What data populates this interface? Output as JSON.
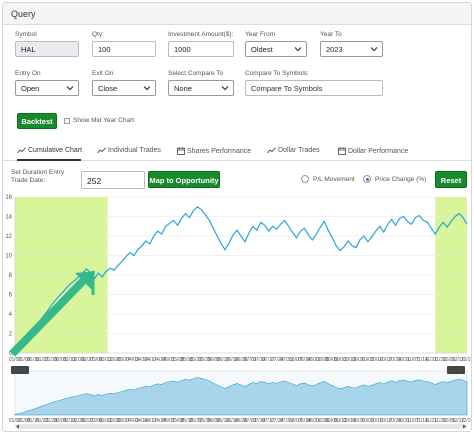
{
  "panel": {
    "title": "Query"
  },
  "form": {
    "symbol": {
      "label": "Symbol",
      "value": "HAL"
    },
    "qty": {
      "label": "Qty:",
      "value": "100"
    },
    "investment": {
      "label": "Investment Amount($):",
      "value": "1000"
    },
    "year_from": {
      "label": "Year From",
      "value": "Oldest"
    },
    "year_to": {
      "label": "Year To",
      "value": "2023"
    },
    "entry_on": {
      "label": "Entry On",
      "value": "Open"
    },
    "exit_on": {
      "label": "Exit On",
      "value": "Close"
    },
    "compare_to": {
      "label": "Select Compare To",
      "value": "None"
    },
    "compare_symbols": {
      "label": "Compare To Symbols:",
      "placeholder": "Compare To Symbols"
    },
    "backtest_label": "Backtest",
    "show_mid_year_label": "Show Mid Year Chart"
  },
  "tabs": [
    {
      "label": "Cumulative Chart",
      "icon": "line-chart-icon",
      "active": true
    },
    {
      "label": "Individual Trades",
      "icon": "line-chart-icon",
      "active": false
    },
    {
      "label": "Shares Performance",
      "icon": "calendar-icon",
      "active": false
    },
    {
      "label": "Dollar Trades",
      "icon": "line-chart-icon",
      "active": false
    },
    {
      "label": "Dollar Performance",
      "icon": "calendar-icon",
      "active": false
    }
  ],
  "controls": {
    "duration_label": "Set Duration Entry Trade Date:",
    "duration_value": "252",
    "map_button": "Map to Opportunity",
    "pl_movement_label": "P/L Movement",
    "price_change_label": "Price Change (%)",
    "reset_button": "Reset",
    "selected_mode": "Price Change (%)"
  },
  "colors": {
    "accent_green": "#178a2c",
    "line_blue": "#2aa5d8",
    "highlight_green": "#d9f59a",
    "arrow_teal": "#35b98a",
    "navigator_fill": "#a8d4ec"
  },
  "chart_data": {
    "type": "line",
    "yticks": [
      "0",
      "2",
      "4",
      "6",
      "8",
      "10",
      "12",
      "14",
      "16"
    ],
    "ylim": [
      0,
      16
    ],
    "xtick_labels": [
      "01/02",
      "01/08",
      "01/15",
      "01/22",
      "01/29",
      "02/05",
      "02/13",
      "02/20",
      "02/27",
      "03/06",
      "03/13",
      "03/20",
      "03/27",
      "04/03",
      "04/10",
      "04/17",
      "04/24",
      "05/01",
      "05/08",
      "05/15",
      "05/22",
      "05/29",
      "06/05",
      "06/12",
      "06/19",
      "06/26",
      "07/03",
      "07/10",
      "07/17",
      "07/24",
      "07/31",
      "08/07",
      "08/14",
      "08/21",
      "08/28",
      "09/05",
      "09/12",
      "09/19",
      "09/26",
      "10/03",
      "10/10",
      "10/17",
      "10/24",
      "10/31",
      "11/07",
      "11/14",
      "11/21",
      "11/28",
      "12/05",
      "12/12",
      "12/19"
    ],
    "highlight_ranges": [
      [
        0,
        0.205
      ],
      [
        0.93,
        1.0
      ]
    ],
    "series": [
      {
        "values": [
          0.3,
          0.6,
          1.0,
          1.5,
          2.0,
          2.5,
          3.1,
          3.7,
          4.2,
          4.8,
          5.3,
          5.8,
          6.2,
          6.7,
          7.1,
          7.4,
          7.8,
          8.2,
          8.6,
          8.3,
          7.6,
          8.2,
          7.8,
          8.4,
          8.7,
          8.5,
          9.0,
          9.4,
          9.9,
          10.3,
          10.0,
          10.6,
          11.0,
          11.5,
          11.2,
          12.0,
          12.5,
          12.2,
          13.0,
          13.3,
          13.6,
          13.1,
          13.8,
          14.3,
          13.9,
          14.6,
          15.0,
          14.7,
          14.2,
          13.6,
          12.8,
          12.0,
          11.2,
          10.6,
          11.3,
          12.1,
          12.6,
          12.0,
          11.4,
          12.3,
          13.0,
          12.6,
          13.4,
          13.1,
          12.5,
          13.0,
          12.7,
          13.2,
          13.6,
          13.0,
          12.4,
          11.8,
          12.5,
          12.8,
          12.1,
          11.6,
          12.2,
          12.9,
          13.5,
          12.6,
          11.8,
          11.0,
          10.5,
          10.9,
          11.5,
          11.0,
          10.8,
          11.6,
          12.0,
          11.4,
          11.9,
          12.5,
          13.0,
          12.4,
          13.2,
          13.7,
          13.1,
          13.8,
          14.0,
          13.5,
          13.2,
          13.9,
          14.1,
          13.6,
          13.4,
          12.8,
          12.2,
          12.9,
          13.4,
          12.9,
          13.5,
          14.0,
          14.3,
          13.9,
          13.2
        ]
      }
    ],
    "navigator": {
      "start_label": "01/02",
      "end_label": "12/30"
    }
  }
}
